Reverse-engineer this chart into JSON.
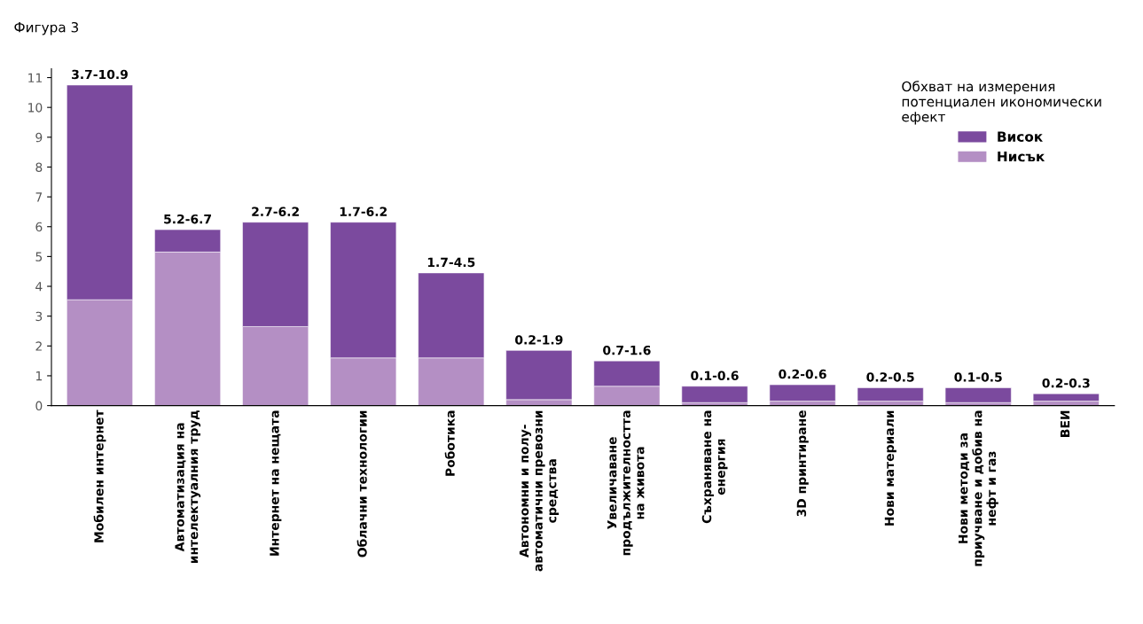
{
  "chart_data": {
    "type": "bar",
    "title": "Фигура 3",
    "stacked": true,
    "categories": [
      "Мобилен интернет",
      "Автоматизация на\nинтелектуалния труд",
      "Интернет на нещата",
      "Облачни технологии",
      "Роботика",
      "Автономни и полу-\nавтоматични превозни\nсредства",
      "Увеличаване\nпродължителността\nна живота",
      "Съхраняване на\nенергия",
      "3D принтиране",
      "Нови материали",
      "Нови методи за\nприучване и добив на\nнефт и газ",
      "ВЕИ"
    ],
    "series": [
      {
        "name": "Нисък",
        "color": "#b48fc4",
        "values": [
          3.55,
          5.15,
          2.65,
          1.6,
          1.6,
          0.2,
          0.65,
          0.1,
          0.15,
          0.15,
          0.1,
          0.15
        ]
      },
      {
        "name": "Висок",
        "color": "#7b4a9e",
        "values": [
          7.2,
          0.75,
          3.5,
          4.55,
          2.85,
          1.65,
          0.85,
          0.55,
          0.55,
          0.45,
          0.5,
          0.25
        ]
      }
    ],
    "totals": [
      "3.7-10.9",
      "5.2-6.7",
      "2.7-6.2",
      "1.7-6.2",
      "1.7-4.5",
      "0.2-1.9",
      "0.7-1.6",
      "0.1-0.6",
      "0.2-0.6",
      "0.2-0.5",
      "0.1-0.5",
      "0.2-0.3"
    ],
    "ylim": [
      0,
      11.3
    ],
    "yticks": [
      0,
      1,
      2,
      3,
      4,
      5,
      6,
      7,
      8,
      9,
      10,
      11
    ],
    "grid": false,
    "legend": "top right",
    "legend_title": "Обхват на измерения\nпотенциален икономически\nефект"
  }
}
